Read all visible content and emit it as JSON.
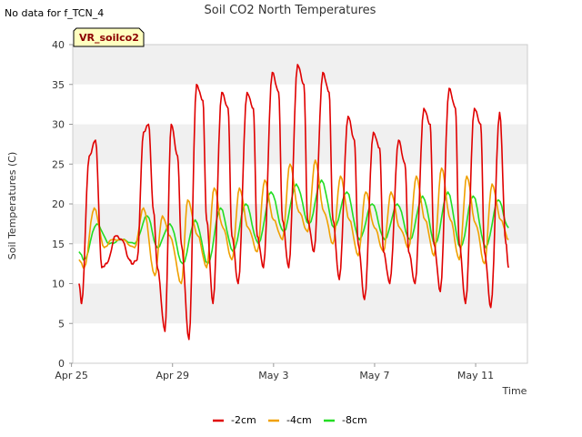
{
  "note": "No data for f_TCN_4",
  "badge": "VR_soilco2",
  "chart_data": {
    "type": "line",
    "title": "Soil CO2 North Temperatures",
    "xlabel": "Time",
    "ylabel": "Soil Temperatures (C)",
    "ylim": [
      0,
      40
    ],
    "yticks": [
      0,
      5,
      10,
      15,
      20,
      25,
      30,
      35,
      40
    ],
    "xlim_days": [
      0,
      18
    ],
    "xticks": [
      {
        "day": 0,
        "label": "Apr 25"
      },
      {
        "day": 4,
        "label": "Apr 29"
      },
      {
        "day": 8,
        "label": "May 3"
      },
      {
        "day": 12,
        "label": "May 7"
      },
      {
        "day": 16,
        "label": "May 11"
      }
    ],
    "grid": "horizontal bands",
    "legend_position": "bottom-center",
    "colors": {
      "-2cm": "#e00000",
      "-4cm": "#f0a000",
      "-8cm": "#22dd22",
      "band": "#f0f0f0"
    },
    "series": [
      {
        "name": "-2cm",
        "color": "#e00000",
        "mins": [
          7.5,
          11.5,
          12.5,
          4,
          3,
          7.5,
          10,
          12,
          12,
          14,
          10.5,
          8,
          10,
          10,
          9,
          7.5,
          7
        ],
        "maxs": [
          28,
          16,
          30,
          30,
          35,
          34,
          34,
          36.5,
          37.5,
          36.5,
          31,
          29,
          28,
          32,
          34.5,
          32,
          31.5
        ],
        "x": [
          0.3,
          0.4,
          0.7,
          0.95,
          1.2,
          1.4,
          1.75,
          2.0,
          2.3,
          2.4,
          2.6,
          2.85,
          3.05,
          3.25,
          3.4,
          3.7,
          3.95,
          4.2,
          4.35,
          4.65,
          4.95,
          5.2,
          5.35,
          5.6,
          5.95,
          6.2,
          6.35,
          6.6,
          6.95,
          7.2,
          7.35,
          7.6,
          7.95,
          8.2,
          8.35,
          8.6,
          8.95,
          9.2,
          9.35,
          9.6,
          9.95,
          10.2,
          10.35,
          10.6,
          10.95,
          11.2,
          11.35,
          11.6,
          11.95,
          12.2,
          12.35,
          12.6,
          12.95,
          13.2,
          13.35,
          13.6,
          13.95,
          14.2,
          14.35,
          14.6,
          14.95,
          15.2,
          15.35,
          15.6,
          15.95,
          16.2,
          16.35,
          16.6,
          16.95,
          17.2,
          17.3
        ],
        "y": [
          10,
          7.5,
          26,
          28,
          12,
          12.5,
          16,
          15.5,
          13,
          12.5,
          13,
          29,
          30,
          19,
          12,
          4,
          30,
          26,
          15,
          3,
          35,
          33,
          18,
          7.5,
          34,
          32,
          16,
          10,
          34,
          32,
          16,
          12,
          36.5,
          34,
          18,
          12,
          37.5,
          35,
          18,
          14,
          36.5,
          34,
          18,
          10.5,
          31,
          28,
          15,
          8,
          29,
          27,
          14,
          10,
          28,
          25,
          14,
          10,
          32,
          30,
          15,
          9,
          34.5,
          32,
          15,
          7.5,
          32,
          30,
          14,
          7,
          31.5,
          15,
          12
        ]
      },
      {
        "name": "-4cm",
        "color": "#f0a000",
        "mins": [
          12,
          14.5,
          14.5,
          11,
          10,
          12,
          13,
          14,
          15.5,
          16.5,
          15,
          13.5,
          14,
          14.5,
          13.5,
          13,
          12.5
        ],
        "maxs": [
          19.5,
          16,
          19.5,
          18.5,
          20.5,
          22,
          22,
          23,
          25,
          25.5,
          23.5,
          21.5,
          21.5,
          23.5,
          24.5,
          23.5,
          22.5
        ],
        "x": [
          0.3,
          0.5,
          0.9,
          1.3,
          1.6,
          2.0,
          2.5,
          2.85,
          3.3,
          3.6,
          3.9,
          4.35,
          4.6,
          5.0,
          5.35,
          5.65,
          6.0,
          6.35,
          6.65,
          7.0,
          7.35,
          7.65,
          8.0,
          8.35,
          8.65,
          9.0,
          9.35,
          9.65,
          10.0,
          10.35,
          10.65,
          11.0,
          11.35,
          11.65,
          12.0,
          12.35,
          12.65,
          13.0,
          13.35,
          13.65,
          14.0,
          14.35,
          14.65,
          15.0,
          15.35,
          15.65,
          16.0,
          16.35,
          16.65,
          17.0,
          17.3
        ],
        "y": [
          13,
          12,
          19.5,
          14.5,
          15.5,
          15.5,
          14.5,
          19.5,
          11,
          18.5,
          16,
          10,
          20.5,
          16,
          12,
          22,
          17,
          13,
          22,
          17,
          14,
          23,
          18,
          15.5,
          25,
          19,
          16.5,
          25.5,
          19,
          15,
          23.5,
          18,
          13.5,
          21.5,
          17,
          14,
          21.5,
          17,
          14.5,
          23.5,
          18,
          13.5,
          24.5,
          18,
          13,
          23.5,
          17.5,
          12.5,
          22.5,
          18,
          15.5
        ]
      },
      {
        "name": "-8cm",
        "color": "#22dd22",
        "mins": [
          13,
          15,
          14.5,
          12.5,
          11.5,
          12.5,
          14,
          15,
          16.5,
          17.5,
          17,
          15.5,
          15.5,
          15.5,
          15,
          14.5,
          14.5
        ],
        "maxs": [
          17.5,
          15.5,
          18.5,
          17.5,
          18.5,
          19.5,
          20,
          21.5,
          22.5,
          23,
          21.5,
          20,
          20,
          21,
          21.5,
          21,
          20.5
        ],
        "x": [
          0.3,
          0.5,
          1.0,
          1.5,
          2.0,
          2.5,
          3.0,
          3.4,
          3.9,
          4.4,
          4.9,
          5.4,
          5.9,
          6.4,
          6.9,
          7.4,
          7.9,
          8.4,
          8.9,
          9.4,
          9.9,
          10.4,
          10.9,
          11.4,
          11.9,
          12.4,
          12.9,
          13.4,
          13.9,
          14.4,
          14.9,
          15.4,
          15.9,
          16.4,
          16.9,
          17.3
        ],
        "y": [
          14,
          13,
          17.5,
          15,
          15.5,
          15,
          18.5,
          14.5,
          17.5,
          12.5,
          18,
          12.5,
          19.5,
          14,
          20,
          15,
          21.5,
          16.5,
          22.5,
          17.5,
          23,
          17,
          21.5,
          15.5,
          20,
          15.5,
          20,
          15.5,
          21,
          15,
          21.5,
          14.5,
          21,
          14.5,
          20.5,
          17
        ]
      }
    ]
  }
}
